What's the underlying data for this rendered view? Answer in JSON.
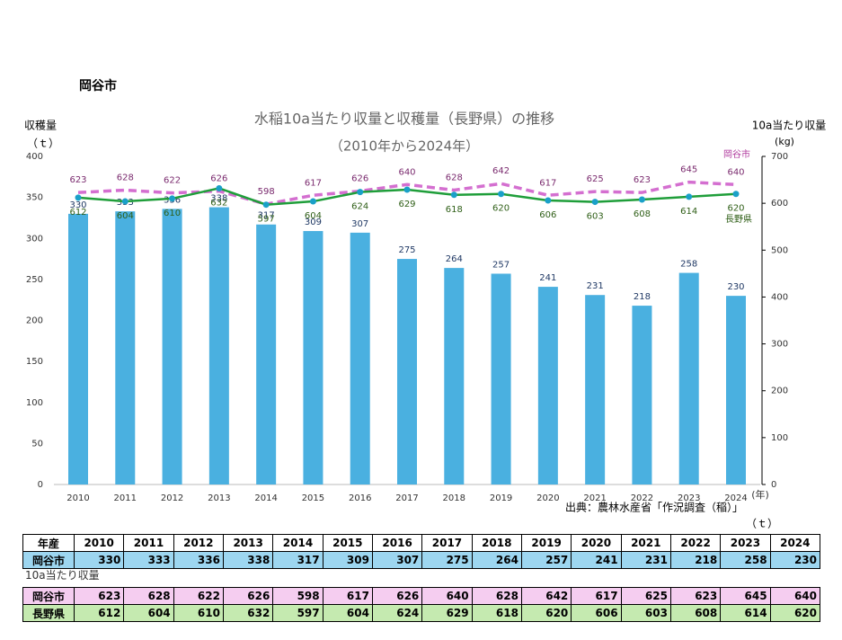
{
  "header": {
    "title": "岡谷市"
  },
  "chart_data": {
    "type": "bar",
    "title": "水稲10a当たり収量と収穫量（長野県）の推移",
    "subtitle": "（2010年から2024年）",
    "y_label": "収穫量",
    "y_unit": "（ｔ）",
    "y2_label": "10a当たり収量",
    "y2_unit": "(kg)",
    "x_unit": "(年)",
    "source": "出典：農林水産省「作況調査（稲）」",
    "categories": [
      "2010",
      "2011",
      "2012",
      "2013",
      "2014",
      "2015",
      "2016",
      "2017",
      "2018",
      "2019",
      "2020",
      "2021",
      "2022",
      "2023",
      "2024"
    ],
    "series": [
      {
        "type": "bar",
        "color": "#4ab0e0",
        "label_color": "#1f3864",
        "values": [
          330,
          333,
          336,
          338,
          317,
          309,
          307,
          275,
          264,
          257,
          241,
          231,
          218,
          258,
          230
        ]
      },
      {
        "type": "line",
        "name": "岡谷市",
        "axis": "y2",
        "color": "#d46fd0",
        "dashed": true,
        "label_color": "#7a2a6e",
        "values": [
          623,
          628,
          622,
          626,
          598,
          617,
          626,
          640,
          628,
          642,
          617,
          625,
          623,
          645,
          640
        ]
      },
      {
        "type": "line",
        "name": "長野県",
        "axis": "y2",
        "color": "#1f9e3a",
        "dashed": false,
        "label_color": "#2e5e16",
        "values": [
          612,
          604,
          610,
          632,
          597,
          604,
          624,
          629,
          618,
          620,
          606,
          603,
          608,
          614,
          620
        ]
      }
    ],
    "ylim": [
      0,
      400
    ],
    "yticks": [
      0,
      50,
      100,
      150,
      200,
      250,
      300,
      350,
      400
    ],
    "y2lim": [
      0,
      700
    ],
    "y2ticks": [
      0,
      100,
      200,
      300,
      400,
      500,
      600,
      700
    ],
    "grid": false
  },
  "table": {
    "unit": "（ｔ）",
    "year_header": "年産",
    "harvest_row_label": "岡谷市",
    "yield_caption": "10a当たり収量"
  }
}
